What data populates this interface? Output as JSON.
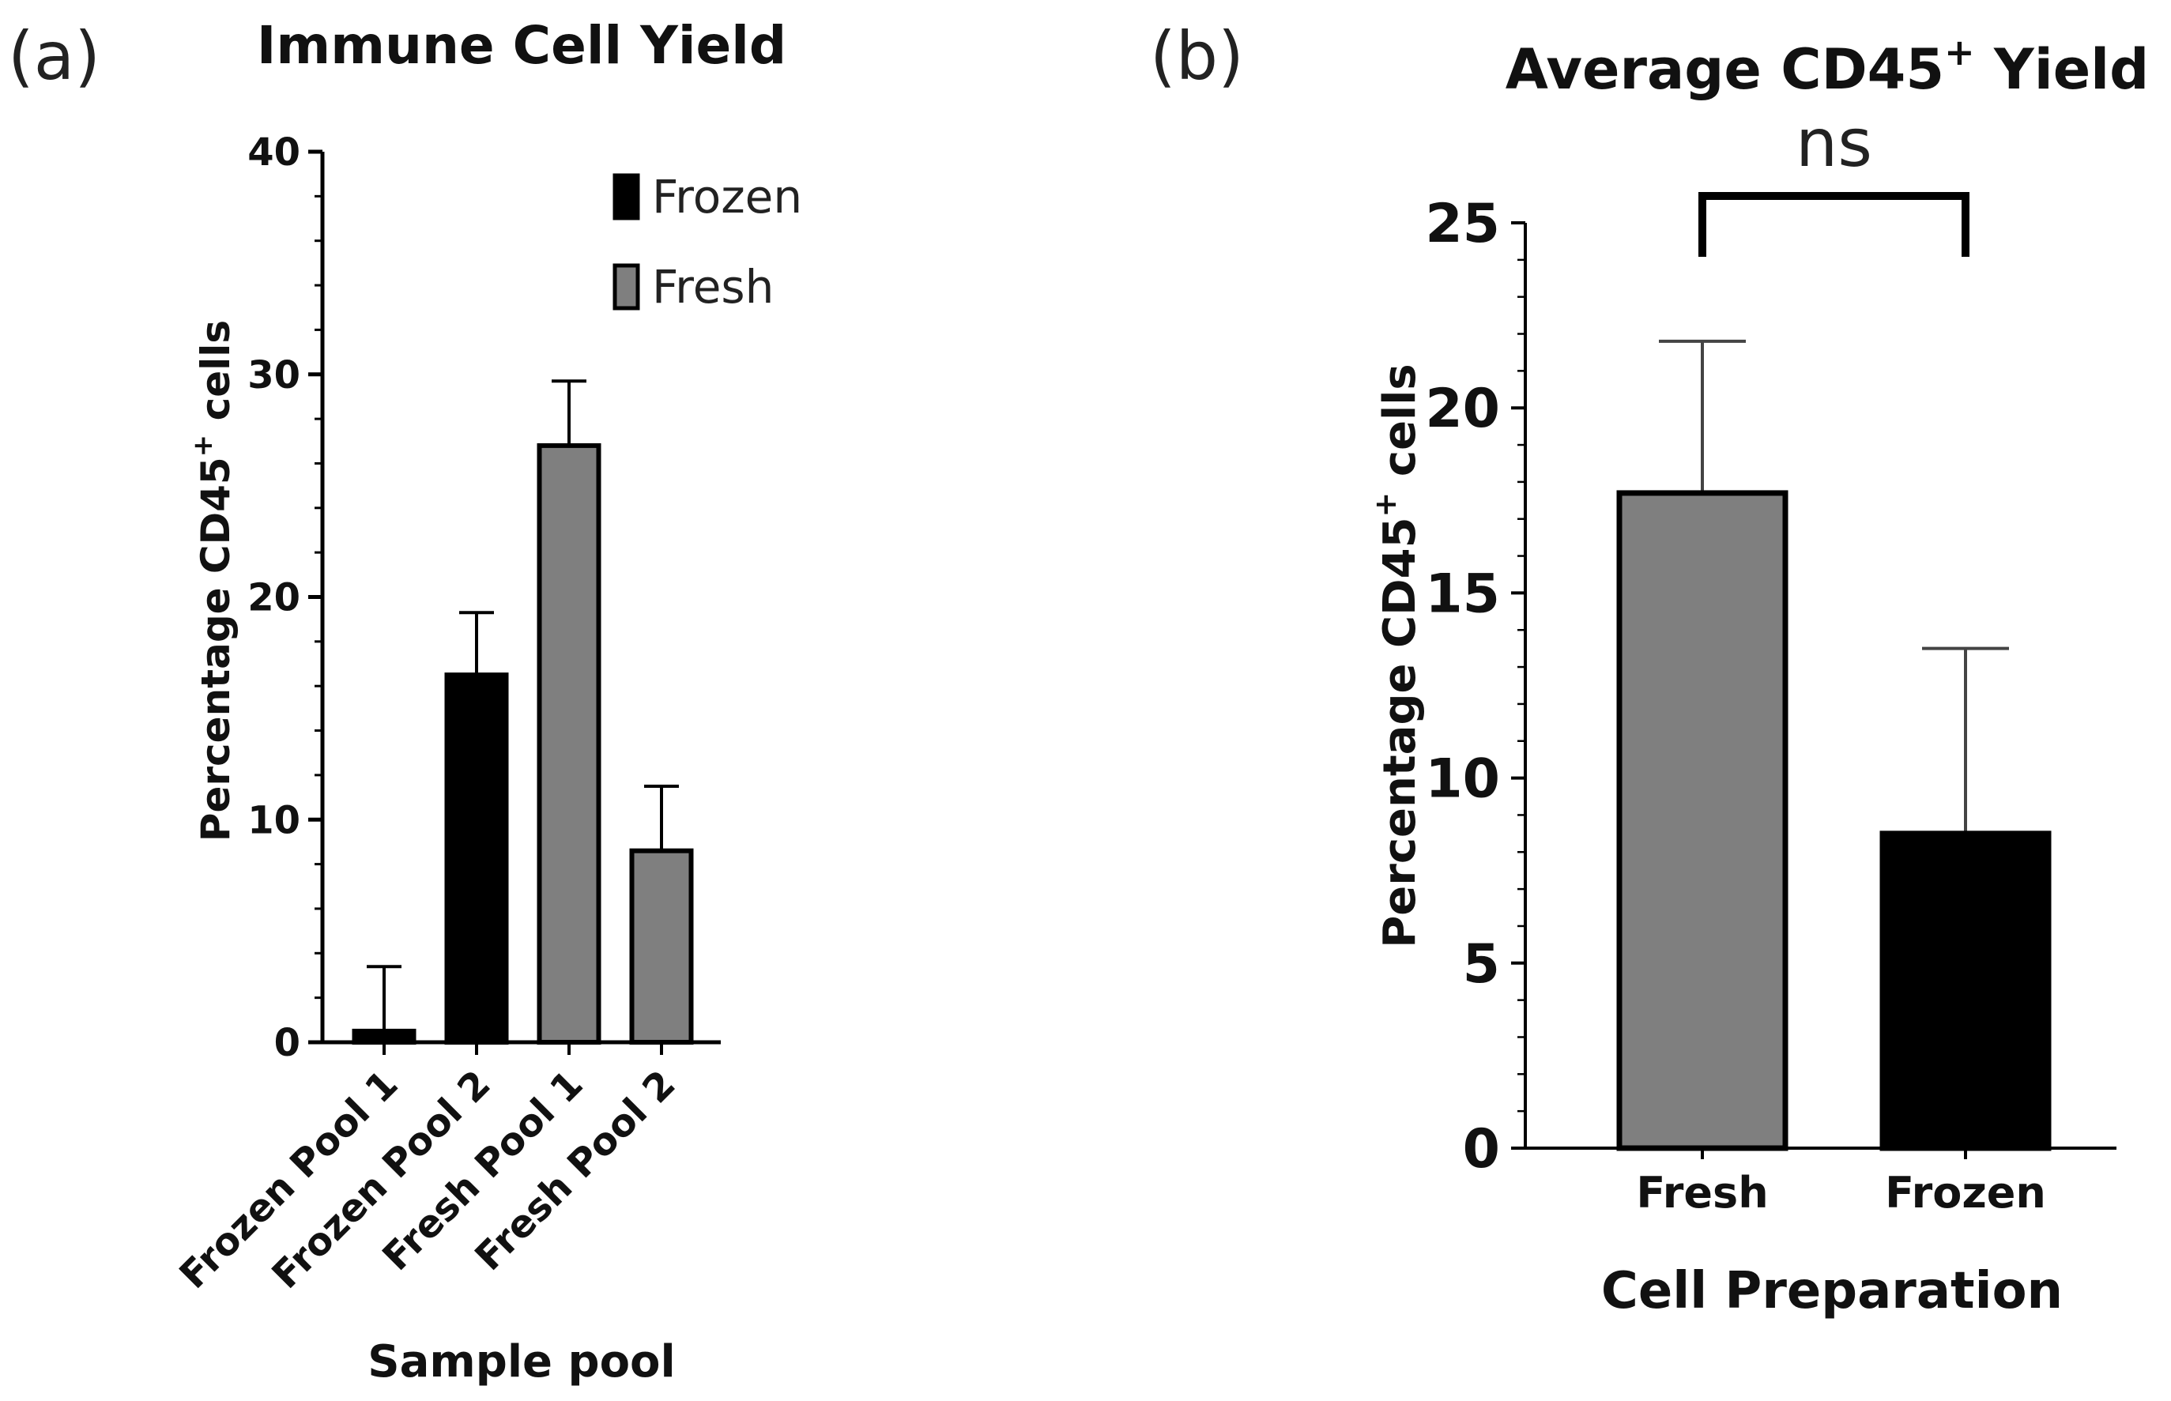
{
  "chart_data": [
    {
      "panel_label": "(a)",
      "type": "bar",
      "title": "Immune Cell Yield",
      "xlabel": "Sample pool",
      "ylabel": "Percentage CD45",
      "ylabel_superscript": "+",
      "ylabel_suffix": " cells",
      "ylim": [
        0,
        40
      ],
      "yticks": [
        0,
        10,
        20,
        30,
        40
      ],
      "categories": [
        "Frozen Pool 1",
        "Frozen Pool 2",
        "Fresh Pool 1",
        "Fresh Pool 2"
      ],
      "values": [
        0.5,
        16.5,
        26.8,
        8.6
      ],
      "errors": [
        2.9,
        2.8,
        2.9,
        2.9
      ],
      "groups": [
        "Frozen",
        "Frozen",
        "Fresh",
        "Fresh"
      ],
      "legend": [
        {
          "name": "Frozen",
          "color": "#000000"
        },
        {
          "name": "Fresh",
          "color": "#7f7f7f"
        }
      ],
      "legend_position": "top-right"
    },
    {
      "panel_label": "(b)",
      "type": "bar",
      "title": "Average CD45",
      "title_superscript": "+",
      "title_suffix": " Yield",
      "xlabel": "Cell Preparation",
      "ylabel": "Percentage CD45",
      "ylabel_superscript": "+",
      "ylabel_suffix": " cells",
      "ylim": [
        0,
        25
      ],
      "yticks": [
        0,
        5,
        10,
        15,
        20,
        25
      ],
      "categories": [
        "Fresh",
        "Frozen"
      ],
      "values": [
        17.7,
        8.5
      ],
      "errors": [
        4.1,
        5.0
      ],
      "colors": [
        "#7f7f7f",
        "#000000"
      ],
      "significance": "ns"
    }
  ]
}
